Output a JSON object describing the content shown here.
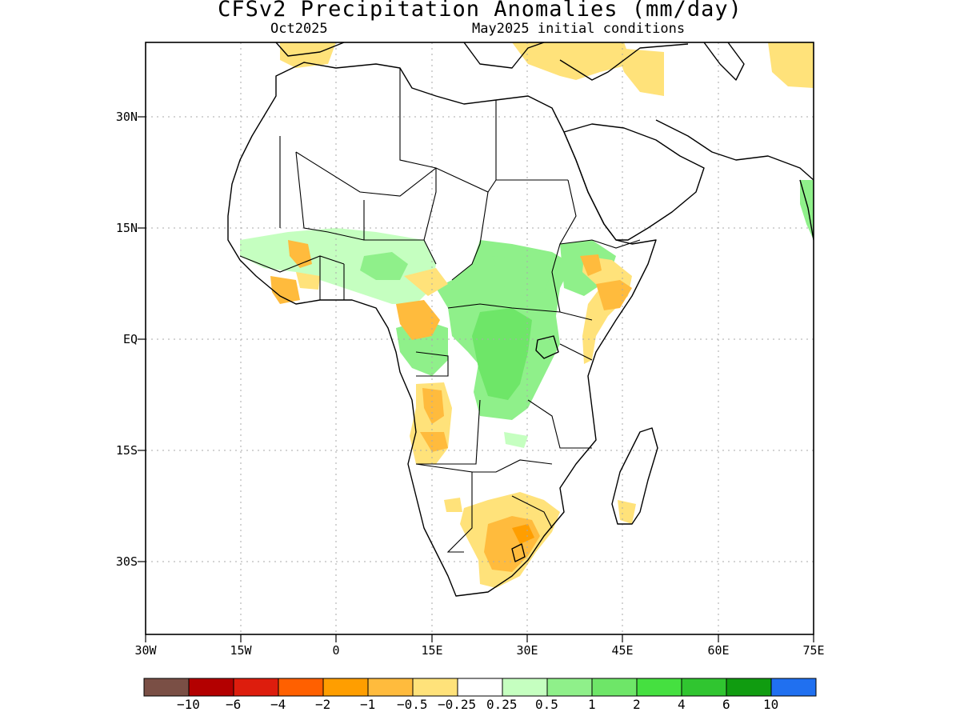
{
  "header": {
    "title": "CFSv2 Precipitation Anomalies (mm/day)",
    "left_subtitle": "Oct2025",
    "right_subtitle": "May2025 initial conditions"
  },
  "axes": {
    "lat_labels": [
      "30N",
      "15N",
      "EQ",
      "15S",
      "30S"
    ],
    "lon_labels": [
      "30W",
      "15W",
      "0",
      "15E",
      "30E",
      "45E",
      "60E",
      "75E"
    ],
    "lon_range": [
      -30,
      75
    ],
    "lat_range": [
      -40,
      40
    ],
    "grid": "dotted"
  },
  "colorbar": {
    "colors": [
      "#7a4f45",
      "#b30000",
      "#dd1d0d",
      "#ff6000",
      "#ff9e00",
      "#ffbb3d",
      "#ffe27a",
      "#ffffff",
      "#c5ffc0",
      "#8ff08a",
      "#6ee668",
      "#45e040",
      "#30c530",
      "#109c10",
      "#2070f0"
    ],
    "labels": [
      "−10",
      "−6",
      "−4",
      "−2",
      "−1",
      "−0.5",
      "−0.25",
      "0.25",
      "0.5",
      "1",
      "2",
      "4",
      "6",
      "10"
    ]
  }
}
